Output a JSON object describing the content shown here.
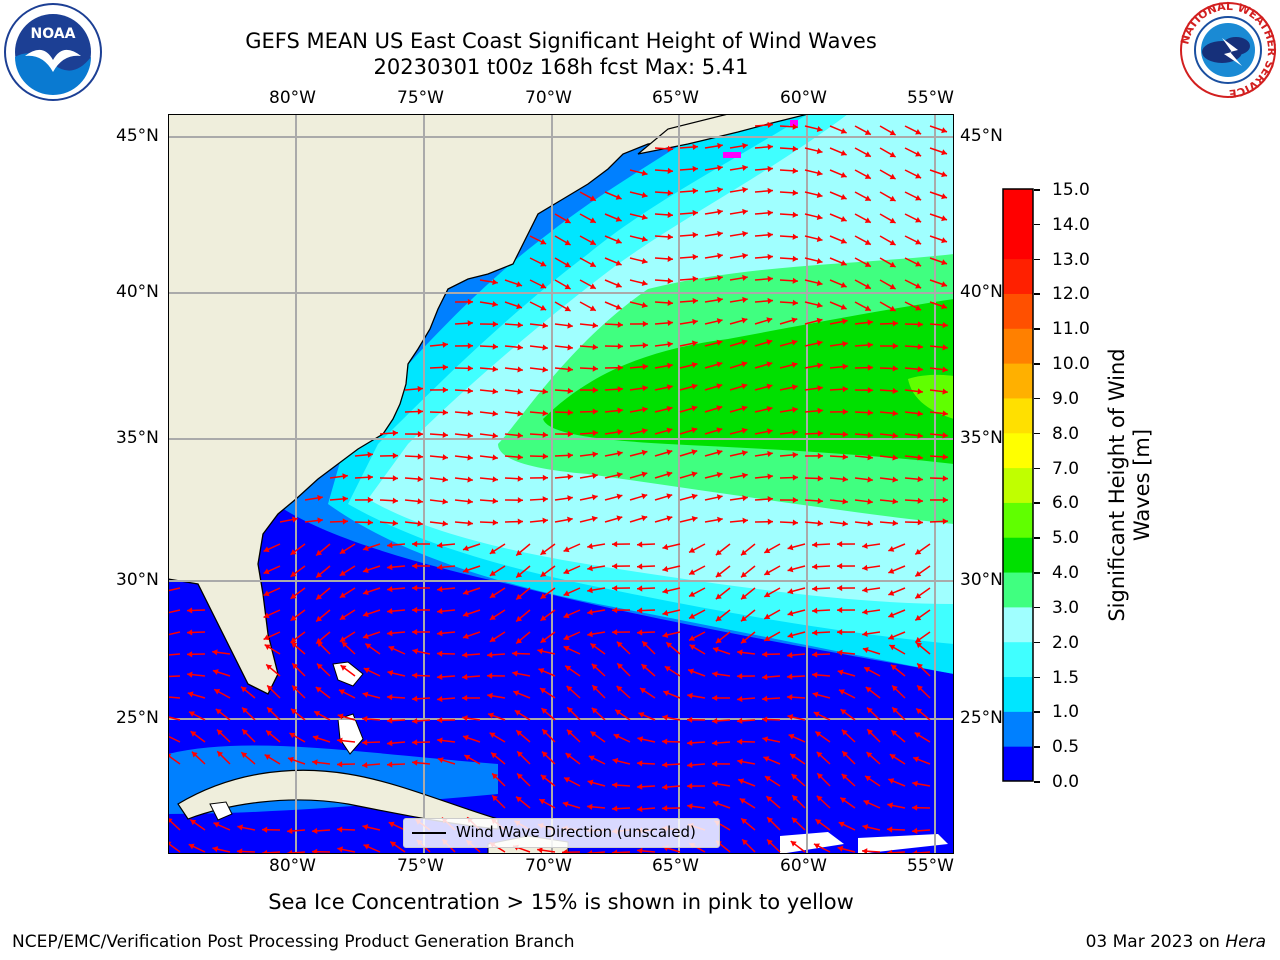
{
  "title": {
    "line1": "GEFS MEAN US East Coast Significant Height of Wind Waves",
    "line2": "20230301 t00z 168h fcst   Max: 5.41"
  },
  "logos": {
    "left": {
      "name": "noaa-logo",
      "text": "NOAA",
      "ring_text": "NATIONAL OCEANIC AND ATMOSPHERIC ADMINISTRATION · U.S. DEPARTMENT OF COMMERCE"
    },
    "right": {
      "name": "nws-logo",
      "ring_text": "NATIONAL WEATHER SERVICE"
    }
  },
  "map": {
    "lon_ticks": [
      "80°W",
      "75°W",
      "70°W",
      "65°W",
      "60°W",
      "55°W"
    ],
    "lat_ticks": [
      "45°N",
      "40°N",
      "35°N",
      "30°N",
      "25°N"
    ],
    "extent": {
      "lon": [
        -85,
        -54.3
      ],
      "lat": [
        20.5,
        46
      ]
    },
    "grid": true,
    "land_color": "#efeedc",
    "arrow_color": "#ff0000"
  },
  "legend": {
    "label": "Wind Wave Direction (unscaled)",
    "placement": "lower-center"
  },
  "colorbar": {
    "label": "Significant Height of Wind Waves [m]",
    "ticks": [
      "15.0",
      "14.0",
      "13.0",
      "12.0",
      "11.0",
      "10.0",
      "9.0",
      "8.0",
      "7.0",
      "6.0",
      "5.0",
      "4.0",
      "3.0",
      "2.0",
      "1.5",
      "1.0",
      "0.5",
      "0.0"
    ],
    "colors": [
      "#0000ff",
      "#0080ff",
      "#00e6ff",
      "#40ffff",
      "#a0ffff",
      "#40ff80",
      "#00e000",
      "#60ff00",
      "#c0ff00",
      "#ffff00",
      "#ffe000",
      "#ffb000",
      "#ff8000",
      "#ff5000",
      "#ff2000",
      "#ff0000",
      "#ff0000"
    ]
  },
  "caption": "Sea Ice Concentration > 15% is shown in pink to yellow",
  "footer": {
    "left": "NCEP/EMC/Verification Post Processing Product Generation Branch",
    "right_date": "03 Mar 2023 on ",
    "right_machine": "Hera"
  }
}
